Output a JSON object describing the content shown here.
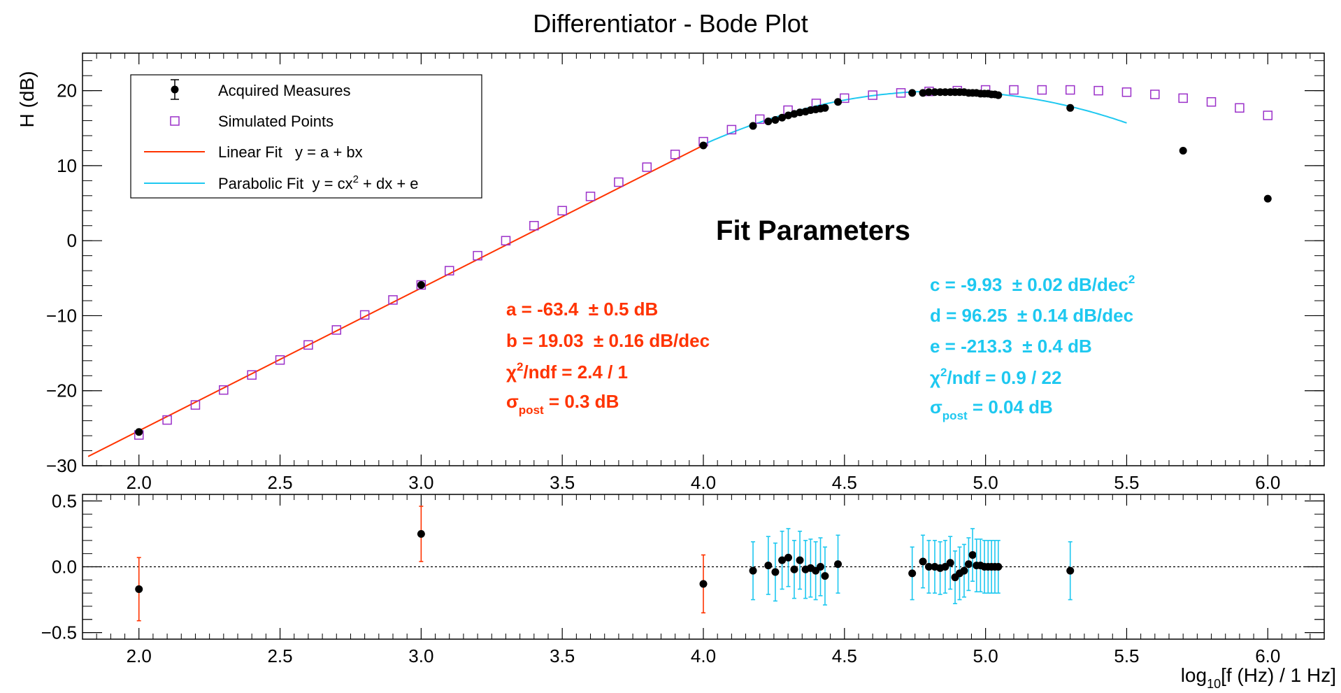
{
  "colors": {
    "data_marker": "#000000",
    "simulated": "#9b30c9",
    "linear_fit": "#ff3300",
    "parabolic_fit": "#1ec8f0",
    "frame": "#000000"
  },
  "chart_data": [
    {
      "type": "scatter",
      "panel": "main",
      "title": "Differentiator - Bode Plot",
      "xlabel": "",
      "ylabel": "H (dB)",
      "xlim": [
        1.8,
        6.2
      ],
      "ylim": [
        -30,
        25
      ],
      "x_ticks": [
        2.0,
        2.5,
        3.0,
        3.5,
        4.0,
        4.5,
        5.0,
        5.5,
        6.0
      ],
      "x_tick_labels": [
        "2.0",
        "2.5",
        "3.0",
        "3.5",
        "4.0",
        "4.5",
        "5.0",
        "5.5",
        "6.0"
      ],
      "y_ticks": [
        -30,
        -20,
        -10,
        0,
        10,
        20
      ],
      "y_tick_labels": [
        "−30",
        "−20",
        "−10",
        "0",
        "10",
        "20"
      ],
      "legend_position": "top-left",
      "legend": [
        {
          "label": "Acquired Measures",
          "kind": "errorpoint",
          "color": "#000000"
        },
        {
          "label": "Simulated Points",
          "kind": "opensquare",
          "color": "#9b30c9"
        },
        {
          "label": "Linear Fit   y = a + bx",
          "kind": "line",
          "color": "#ff3300"
        },
        {
          "label_pre": "Parabolic Fit  y = cx",
          "label_sup": "2",
          "label_post": " + dx + e",
          "kind": "line",
          "color": "#1ec8f0"
        }
      ],
      "series": [
        {
          "name": "Acquired Measures",
          "marker": "filled-circle",
          "x": [
            2.0,
            3.0,
            4.0,
            4.176,
            4.23,
            4.255,
            4.279,
            4.301,
            4.322,
            4.342,
            4.362,
            4.38,
            4.398,
            4.415,
            4.431,
            4.477,
            4.74,
            4.778,
            4.799,
            4.82,
            4.839,
            4.857,
            4.875,
            4.892,
            4.908,
            4.924,
            4.94,
            4.954,
            4.968,
            4.982,
            4.996,
            5.009,
            5.021,
            5.033,
            5.045,
            5.3,
            5.7,
            6.0
          ],
          "y": [
            -25.5,
            -5.9,
            12.7,
            15.3,
            15.9,
            16.1,
            16.4,
            16.7,
            16.9,
            17.1,
            17.2,
            17.4,
            17.5,
            17.6,
            17.7,
            18.5,
            19.7,
            19.7,
            19.8,
            19.8,
            19.8,
            19.8,
            19.8,
            19.8,
            19.8,
            19.8,
            19.7,
            19.7,
            19.7,
            19.6,
            19.6,
            19.6,
            19.5,
            19.5,
            19.4,
            17.7,
            12.0,
            5.6
          ]
        },
        {
          "name": "Simulated Points",
          "marker": "open-square",
          "x": [
            2.0,
            2.1,
            2.2,
            2.3,
            2.4,
            2.5,
            2.6,
            2.7,
            2.8,
            2.9,
            3.0,
            3.1,
            3.2,
            3.3,
            3.4,
            3.5,
            3.6,
            3.7,
            3.8,
            3.9,
            4.0,
            4.1,
            4.2,
            4.3,
            4.4,
            4.5,
            4.6,
            4.7,
            4.8,
            4.9,
            5.0,
            5.1,
            5.2,
            5.3,
            5.4,
            5.5,
            5.6,
            5.7,
            5.8,
            5.9,
            6.0
          ],
          "y": [
            -25.9,
            -23.9,
            -21.9,
            -19.9,
            -17.9,
            -15.9,
            -13.9,
            -11.9,
            -9.9,
            -7.9,
            -5.9,
            -4.0,
            -2.0,
            0.0,
            2.0,
            4.0,
            5.9,
            7.8,
            9.8,
            11.5,
            13.2,
            14.8,
            16.2,
            17.4,
            18.3,
            19.0,
            19.4,
            19.7,
            19.9,
            20.0,
            20.1,
            20.1,
            20.1,
            20.1,
            20.0,
            19.8,
            19.5,
            19.0,
            18.5,
            17.7,
            16.7
          ]
        },
        {
          "name": "Linear Fit   y = a + bx",
          "kind": "line",
          "x_range": [
            1.82,
            4.0
          ],
          "a": -63.4,
          "b": 19.03
        },
        {
          "name": "Parabolic Fit  y = cx2 + dx + e",
          "kind": "curve",
          "x_range": [
            4.0,
            5.5
          ],
          "c": -9.93,
          "d": 96.25,
          "e": -213.3
        }
      ],
      "annotations": {
        "heading": "Fit Parameters",
        "linear": [
          "a = -63.4  ± 0.5 dB",
          "b = 19.03  ± 0.16 dB/dec"
        ],
        "linear_chi_pre": "χ",
        "linear_chi_sup": "2",
        "linear_chi_post": "/ndf = 2.4 / 1",
        "linear_sigma_pre": "σ",
        "linear_sigma_sub": "post",
        "linear_sigma_post": " = 0.3 dB",
        "parabolic_c_pre": "c = -9.93  ± 0.02 dB/dec",
        "parabolic_c_sup": "2",
        "parabolic": [
          "d = 96.25  ± 0.14 dB/dec",
          "e = -213.3  ± 0.4 dB"
        ],
        "parabolic_chi_pre": "χ",
        "parabolic_chi_sup": "2",
        "parabolic_chi_post": "/ndf = 0.9 / 22",
        "parabolic_sigma_pre": "σ",
        "parabolic_sigma_sub": "post",
        "parabolic_sigma_post": " = 0.04 dB"
      }
    },
    {
      "type": "scatter",
      "panel": "residuals",
      "xlabel_pre": "log",
      "xlabel_sub": "10",
      "xlabel_post": "[f (Hz) / 1 Hz]",
      "ylabel": "",
      "xlim": [
        1.8,
        6.2
      ],
      "ylim": [
        -0.55,
        0.55
      ],
      "x_ticks": [
        2.0,
        2.5,
        3.0,
        3.5,
        4.0,
        4.5,
        5.0,
        5.5,
        6.0
      ],
      "x_tick_labels": [
        "2.0",
        "2.5",
        "3.0",
        "3.5",
        "4.0",
        "4.5",
        "5.0",
        "5.5",
        "6.0"
      ],
      "y_ticks": [
        -0.5,
        0.0,
        0.5
      ],
      "y_tick_labels": [
        "−0.5",
        "0.0",
        "0.5"
      ],
      "zero_line": true,
      "series": [
        {
          "name": "Residuals (linear fit)",
          "color": "#ff3300",
          "x": [
            2.0,
            3.0,
            4.0
          ],
          "y": [
            -0.17,
            0.25,
            -0.13
          ],
          "err": [
            0.24,
            0.21,
            0.22
          ]
        },
        {
          "name": "Residuals (parabolic fit)",
          "color": "#1ec8f0",
          "x": [
            4.176,
            4.23,
            4.255,
            4.279,
            4.301,
            4.322,
            4.342,
            4.362,
            4.38,
            4.398,
            4.415,
            4.431,
            4.477,
            4.74,
            4.778,
            4.799,
            4.82,
            4.839,
            4.857,
            4.875,
            4.892,
            4.908,
            4.924,
            4.94,
            4.954,
            4.968,
            4.982,
            4.996,
            5.009,
            5.021,
            5.033,
            5.045,
            5.3
          ],
          "y": [
            -0.03,
            0.01,
            -0.04,
            0.05,
            0.07,
            -0.02,
            0.05,
            -0.02,
            -0.01,
            -0.03,
            0.0,
            -0.07,
            0.02,
            -0.05,
            0.04,
            0.0,
            0.0,
            -0.01,
            0.0,
            0.03,
            -0.08,
            -0.05,
            -0.03,
            0.02,
            0.09,
            0.01,
            0.01,
            0.0,
            0.0,
            0.0,
            0.0,
            0.0,
            -0.03
          ],
          "err": [
            0.22,
            0.22,
            0.22,
            0.22,
            0.22,
            0.22,
            0.22,
            0.22,
            0.22,
            0.22,
            0.22,
            0.22,
            0.22,
            0.2,
            0.2,
            0.2,
            0.2,
            0.2,
            0.2,
            0.2,
            0.2,
            0.2,
            0.2,
            0.2,
            0.2,
            0.2,
            0.2,
            0.2,
            0.2,
            0.2,
            0.2,
            0.2,
            0.22
          ]
        }
      ]
    }
  ]
}
